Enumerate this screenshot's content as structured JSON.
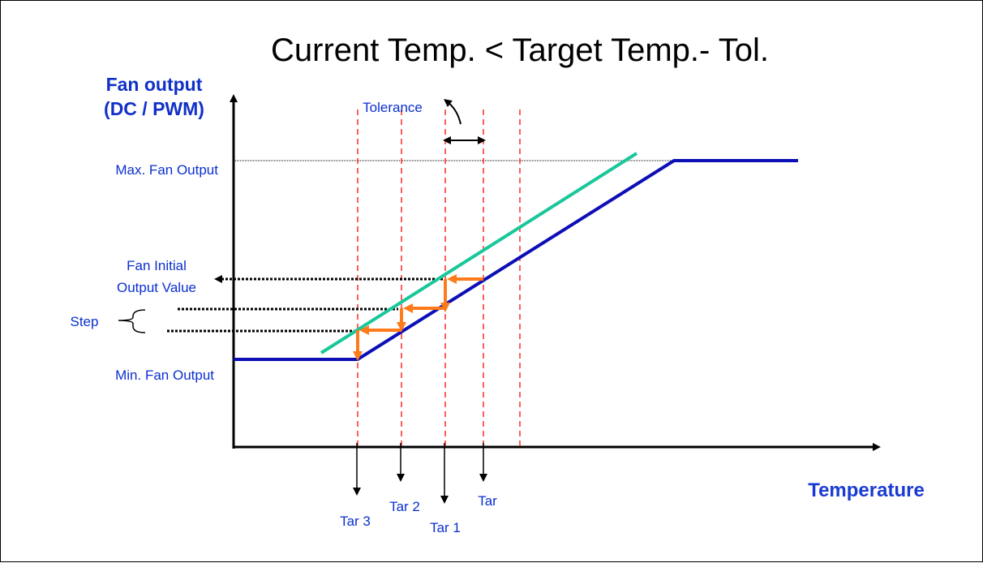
{
  "title": "Current Temp. < Target Temp.- Tol.",
  "y_axis_label_line1": "Fan output",
  "y_axis_label_line2": "(DC / PWM)",
  "x_axis_label": "Temperature",
  "tolerance_label": "Tolerance",
  "max_label": "Max. Fan Output",
  "initial_label_line1": "Fan Initial",
  "initial_label_line2": "Output Value",
  "step_label": "Step",
  "min_label": "Min. Fan Output",
  "target_labels": {
    "tar": "Tar",
    "tar1": "Tar 1",
    "tar2": "Tar 2",
    "tar3": "Tar 3"
  },
  "colors": {
    "curve": "#0b0fb5",
    "green": "#19c79a",
    "orange": "#ff7a1a",
    "dashed": "#ff2a2a",
    "text": "#0a2fd0"
  }
}
